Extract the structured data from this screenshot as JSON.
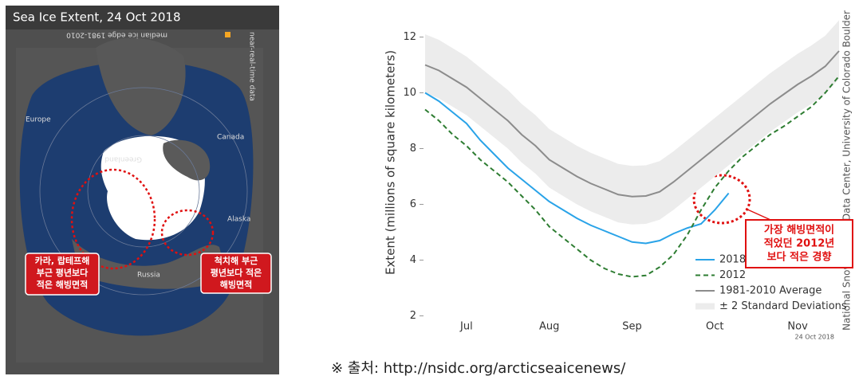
{
  "map": {
    "title": "Sea Ice Extent, 24 Oct 2018",
    "legend": "median ice edge 1981-2010",
    "side_label": "near-real-time data",
    "places": [
      "Europe",
      "Greenland",
      "Canada",
      "Alaska",
      "Russia"
    ],
    "callouts": [
      [
        "카라, 랍테프해",
        "부근 평년보다",
        "적은 해빙면적"
      ],
      [
        "척치해 부근",
        "평년보다 적은",
        "해빙면적"
      ]
    ]
  },
  "chart_data": {
    "type": "line",
    "y_label": "Extent (millions of square kilometers)",
    "categories": [
      null,
      null,
      null,
      "Jul",
      null,
      null,
      null,
      null,
      null,
      "Aug",
      null,
      null,
      null,
      null,
      null,
      "Sep",
      null,
      null,
      null,
      null,
      null,
      "Oct",
      null,
      null,
      null,
      null,
      null,
      "Nov",
      null,
      null,
      null
    ],
    "series": [
      {
        "name": "2018",
        "color": "#29a3e8",
        "values": [
          10.0,
          9.7,
          9.3,
          8.9,
          8.3,
          7.8,
          7.3,
          6.9,
          6.5,
          6.1,
          5.8,
          5.5,
          5.25,
          5.05,
          4.85,
          4.65,
          4.6,
          4.7,
          4.95,
          5.15,
          5.3,
          5.8,
          6.4,
          null,
          null,
          null,
          null,
          null,
          null,
          null,
          null
        ]
      },
      {
        "name": "2012",
        "color": "#2e7d32",
        "dashed": true,
        "values": [
          9.4,
          9.0,
          8.5,
          8.1,
          7.6,
          7.2,
          6.8,
          6.3,
          5.8,
          5.2,
          4.8,
          4.4,
          4.0,
          3.7,
          3.5,
          3.4,
          3.45,
          3.75,
          4.2,
          4.9,
          5.8,
          6.6,
          7.2,
          7.7,
          8.1,
          8.5,
          8.8,
          9.15,
          9.5,
          10.0,
          10.6
        ]
      },
      {
        "name": "1981-2010 Average",
        "color": "#8c8c8c",
        "values": [
          11.0,
          10.8,
          10.5,
          10.2,
          9.8,
          9.4,
          9.0,
          8.5,
          8.1,
          7.6,
          7.3,
          7.0,
          6.75,
          6.55,
          6.35,
          6.28,
          6.3,
          6.45,
          6.8,
          7.2,
          7.6,
          8.0,
          8.4,
          8.8,
          9.2,
          9.6,
          9.95,
          10.3,
          10.6,
          10.95,
          11.5
        ]
      },
      {
        "name": "± 2 Standard Deviations",
        "color": "#ececec",
        "band": true,
        "values": [
          12.1,
          11.9,
          11.6,
          11.3,
          10.9,
          10.5,
          10.1,
          9.6,
          9.2,
          8.7,
          8.4,
          8.1,
          7.85,
          7.65,
          7.45,
          7.38,
          7.4,
          7.55,
          7.9,
          8.3,
          8.7,
          9.1,
          9.5,
          9.9,
          10.3,
          10.7,
          11.05,
          11.4,
          11.7,
          12.05,
          12.6
        ],
        "lower": [
          10.0,
          9.8,
          9.5,
          9.2,
          8.8,
          8.4,
          8.0,
          7.5,
          7.1,
          6.6,
          6.3,
          6.0,
          5.75,
          5.55,
          5.35,
          5.28,
          5.3,
          5.45,
          5.8,
          6.2,
          6.6,
          7.0,
          7.4,
          7.8,
          8.2,
          8.6,
          8.95,
          9.3,
          9.6,
          9.95,
          10.5
        ]
      }
    ],
    "ylim": [
      1.9,
      13.1
    ],
    "yticks": [
      2,
      4,
      6,
      8,
      10,
      12
    ],
    "grid": false,
    "note": "24 Oct 2018",
    "credit": "National Snow and Ice Data Center, University of Colorado Boulder",
    "annotation": [
      "가장 해빙면적이",
      "적었던 2012년",
      "보다 적은 경향"
    ]
  },
  "source": "※ 출처: http://nsidc.org/arcticseaicenews/"
}
